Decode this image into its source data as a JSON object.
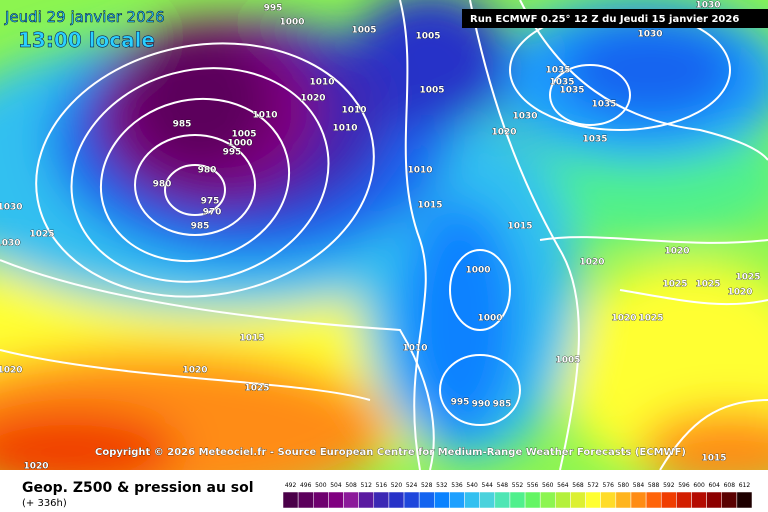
{
  "header": {
    "date": "Jeudi 29 janvier 2026",
    "time": "13:00 locale",
    "run": "Run ECMWF 0.25° 12 Z du Jeudi 15 janvier 2026"
  },
  "copyright": "Copyright © 2026 Meteociel.fr - Source European Centre for Medium-Range Weather Forecasts (ECMWF)",
  "footer": {
    "title": "Geop. Z500 & pression au sol",
    "step": "(+ 336h)"
  },
  "legend": {
    "ticks": [
      492,
      496,
      500,
      504,
      508,
      512,
      516,
      520,
      524,
      528,
      532,
      536,
      540,
      544,
      548,
      552,
      556,
      560,
      564,
      568,
      572,
      576,
      580,
      584,
      588,
      592,
      596,
      600,
      604,
      608,
      612
    ],
    "colors": [
      "#4b0049",
      "#5c005c",
      "#6e006e",
      "#800080",
      "#8c1a9a",
      "#5a1aa0",
      "#3c28b4",
      "#2832c8",
      "#1e46dc",
      "#1464f0",
      "#0a82ff",
      "#1ea0ff",
      "#32c0f0",
      "#4ad2dc",
      "#4ee6b4",
      "#50f08c",
      "#64f564",
      "#8cf550",
      "#b4f03c",
      "#dcf032",
      "#ffff32",
      "#ffdc28",
      "#ffb41e",
      "#ff8c14",
      "#ff640a",
      "#f03c00",
      "#d21e00",
      "#b40a00",
      "#8c0000",
      "#5a0000",
      "#1e0000"
    ]
  },
  "isobar_labels": [
    995,
    1000,
    1005,
    1005,
    1005,
    1030,
    1035,
    1035,
    1035,
    1035,
    1035,
    1030,
    1020,
    1010,
    1010,
    1020,
    1010,
    1010,
    985,
    980,
    980,
    975,
    970,
    985,
    1005,
    1000,
    995,
    1010,
    1015,
    1015,
    1030,
    1025,
    1030,
    1020,
    1020,
    1025,
    1025,
    1020,
    1025,
    1000,
    1000,
    1010,
    1005,
    1020,
    1025,
    995,
    990,
    985,
    1015,
    1020,
    1025,
    1020,
    1020,
    1015,
    1030
  ]
}
